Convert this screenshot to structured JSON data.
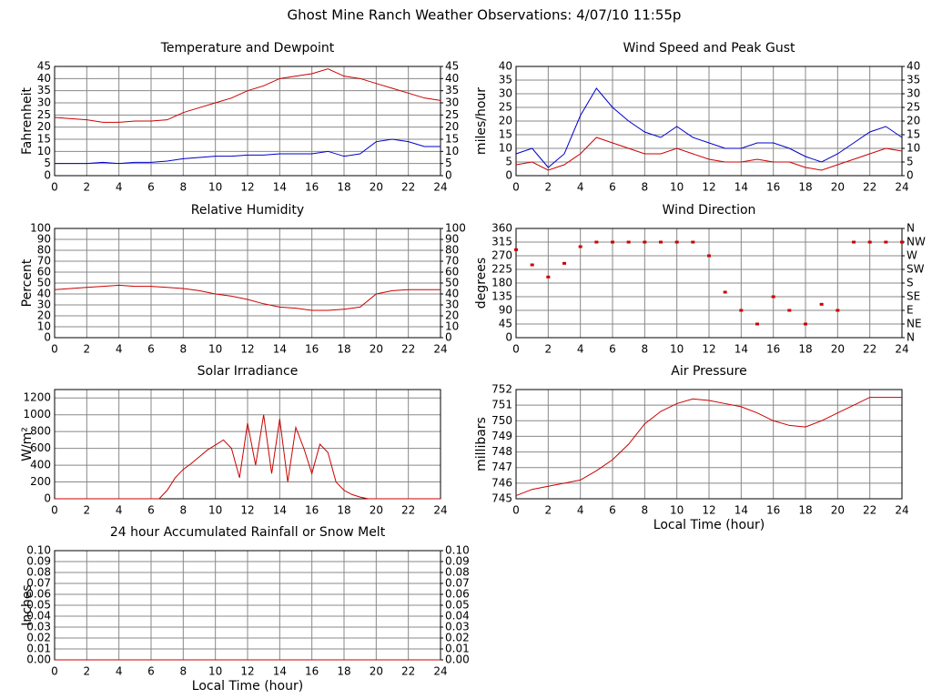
{
  "title": "Ghost Mine Ranch Weather Observations: 4/07/10 11:55p",
  "chart_data": [
    {
      "type": "line",
      "title": "Temperature and Dewpoint",
      "y_label": "Fahrenheit",
      "x": [
        0,
        1,
        2,
        3,
        4,
        5,
        6,
        7,
        8,
        9,
        10,
        11,
        12,
        13,
        14,
        15,
        16,
        17,
        18,
        19,
        20,
        21,
        22,
        23,
        24
      ],
      "series": [
        {
          "color": "#cc0000",
          "values": [
            24,
            23.5,
            23,
            22,
            22,
            22.5,
            22.5,
            23,
            26,
            28,
            30,
            32,
            35,
            37,
            40,
            41,
            42,
            44,
            41,
            40,
            38,
            36,
            34,
            32,
            31
          ]
        },
        {
          "color": "#0000cc",
          "values": [
            5,
            5,
            5,
            5.5,
            5,
            5.5,
            5.5,
            6,
            7,
            7.5,
            8,
            8,
            8.5,
            8.5,
            9,
            9,
            9,
            10,
            8,
            9,
            14,
            15,
            14,
            12,
            12
          ]
        }
      ],
      "xlim": [
        0,
        24
      ],
      "xticks": [
        0,
        2,
        4,
        6,
        8,
        10,
        12,
        14,
        16,
        18,
        20,
        22,
        24
      ],
      "ylim": [
        0,
        45
      ],
      "yticks": [
        0,
        5,
        10,
        15,
        20,
        25,
        30,
        35,
        40,
        45
      ],
      "y2lim": [
        0,
        45
      ],
      "y2ticks": [
        0,
        5,
        10,
        15,
        20,
        25,
        30,
        35,
        40,
        45
      ],
      "grid": true
    },
    {
      "type": "line",
      "title": "Wind Speed and Peak Gust",
      "y_label": "miles/hour",
      "x": [
        0,
        1,
        2,
        3,
        4,
        5,
        6,
        7,
        8,
        9,
        10,
        11,
        12,
        13,
        14,
        15,
        16,
        17,
        18,
        19,
        20,
        21,
        22,
        23,
        24
      ],
      "series": [
        {
          "color": "#0000cc",
          "values": [
            8,
            10,
            3,
            8,
            22,
            32,
            25,
            20,
            16,
            14,
            18,
            14,
            12,
            10,
            10,
            12,
            12,
            10,
            7,
            5,
            8,
            12,
            16,
            18,
            14
          ]
        },
        {
          "color": "#cc0000",
          "values": [
            4,
            5,
            2,
            4,
            8,
            14,
            12,
            10,
            8,
            8,
            10,
            8,
            6,
            5,
            5,
            6,
            5,
            5,
            3,
            2,
            4,
            6,
            8,
            10,
            9
          ]
        }
      ],
      "xlim": [
        0,
        24
      ],
      "xticks": [
        0,
        2,
        4,
        6,
        8,
        10,
        12,
        14,
        16,
        18,
        20,
        22,
        24
      ],
      "ylim": [
        0,
        40
      ],
      "yticks": [
        0,
        5,
        10,
        15,
        20,
        25,
        30,
        35,
        40
      ],
      "y2lim": [
        0,
        40
      ],
      "y2ticks": [
        0,
        5,
        10,
        15,
        20,
        25,
        30,
        35,
        40
      ],
      "grid": true
    },
    {
      "type": "line",
      "title": "Relative Humidity",
      "y_label": "Percent",
      "x": [
        0,
        1,
        2,
        3,
        4,
        5,
        6,
        7,
        8,
        9,
        10,
        11,
        12,
        13,
        14,
        15,
        16,
        17,
        18,
        19,
        20,
        21,
        22,
        23,
        24
      ],
      "series": [
        {
          "color": "#cc0000",
          "values": [
            44,
            45,
            46,
            47,
            48,
            47,
            47,
            46,
            45,
            43,
            40,
            38,
            35,
            31,
            28,
            27,
            25,
            25,
            26,
            28,
            40,
            43,
            44,
            44,
            44
          ]
        }
      ],
      "xlim": [
        0,
        24
      ],
      "xticks": [
        0,
        2,
        4,
        6,
        8,
        10,
        12,
        14,
        16,
        18,
        20,
        22,
        24
      ],
      "ylim": [
        0,
        100
      ],
      "yticks": [
        0,
        10,
        20,
        30,
        40,
        50,
        60,
        70,
        80,
        90,
        100
      ],
      "y2lim": [
        0,
        100
      ],
      "y2ticks": [
        0,
        10,
        20,
        30,
        40,
        50,
        60,
        70,
        80,
        90,
        100
      ],
      "grid": true
    },
    {
      "type": "scatter",
      "title": "Wind Direction",
      "y_label": "degrees",
      "x": [
        0,
        1,
        2,
        3,
        4,
        5,
        6,
        7,
        8,
        9,
        10,
        11,
        12,
        13,
        14,
        15,
        16,
        17,
        18,
        19,
        20,
        21,
        22,
        23,
        24
      ],
      "series": [
        {
          "color": "#cc0000",
          "values": [
            290,
            240,
            200,
            245,
            300,
            315,
            315,
            315,
            315,
            315,
            315,
            315,
            270,
            150,
            90,
            45,
            135,
            90,
            45,
            110,
            90,
            315,
            315,
            315,
            315
          ]
        }
      ],
      "xlim": [
        0,
        24
      ],
      "xticks": [
        0,
        2,
        4,
        6,
        8,
        10,
        12,
        14,
        16,
        18,
        20,
        22,
        24
      ],
      "ylim": [
        0,
        360
      ],
      "yticks": [
        0,
        45,
        90,
        135,
        180,
        225,
        270,
        315,
        360
      ],
      "y2lim": [
        0,
        360
      ],
      "y2ticks": [
        {
          "value": 0,
          "label": "N"
        },
        {
          "value": 45,
          "label": "NE"
        },
        {
          "value": 90,
          "label": "E"
        },
        {
          "value": 135,
          "label": "SE"
        },
        {
          "value": 180,
          "label": "S"
        },
        {
          "value": 225,
          "label": "SW"
        },
        {
          "value": 270,
          "label": "W"
        },
        {
          "value": 315,
          "label": "NW"
        },
        {
          "value": 360,
          "label": "N"
        }
      ],
      "grid": true
    },
    {
      "type": "line",
      "title": "Solar Irradiance",
      "y_label": "W/m²",
      "x": [
        0,
        6.5,
        7,
        7.5,
        8,
        8.5,
        9,
        9.5,
        10,
        10.5,
        11,
        11.5,
        12,
        12.5,
        13,
        13.5,
        14,
        14.5,
        15,
        15.5,
        16,
        16.5,
        17,
        17.5,
        18,
        18.5,
        19,
        19.5,
        24
      ],
      "series": [
        {
          "color": "#cc0000",
          "values": [
            0,
            0,
            100,
            250,
            350,
            420,
            500,
            580,
            640,
            700,
            600,
            250,
            900,
            400,
            1000,
            300,
            950,
            200,
            850,
            600,
            300,
            650,
            550,
            200,
            100,
            50,
            20,
            0,
            0
          ]
        }
      ],
      "xlim": [
        0,
        24
      ],
      "xticks": [
        0,
        2,
        4,
        6,
        8,
        10,
        12,
        14,
        16,
        18,
        20,
        22,
        24
      ],
      "ylim": [
        0,
        1300
      ],
      "yticks": [
        0,
        200,
        400,
        600,
        800,
        1000,
        1200
      ],
      "grid": true
    },
    {
      "type": "line",
      "title": "Air Pressure",
      "y_label": "millibars",
      "x_label": "Local Time (hour)",
      "x": [
        0,
        1,
        2,
        3,
        4,
        5,
        6,
        7,
        8,
        9,
        10,
        11,
        12,
        13,
        14,
        15,
        16,
        17,
        18,
        19,
        20,
        21,
        22,
        23,
        24
      ],
      "series": [
        {
          "color": "#cc0000",
          "values": [
            745.2,
            745.6,
            745.8,
            746,
            746.2,
            746.8,
            747.5,
            748.5,
            749.8,
            750.6,
            751.1,
            751.4,
            751.3,
            751.1,
            750.9,
            750.5,
            750,
            749.7,
            749.6,
            750,
            750.5,
            751,
            751.5,
            751.5,
            751.5
          ]
        }
      ],
      "xlim": [
        0,
        24
      ],
      "xticks": [
        0,
        2,
        4,
        6,
        8,
        10,
        12,
        14,
        16,
        18,
        20,
        22,
        24
      ],
      "ylim": [
        745,
        752
      ],
      "yticks": [
        745,
        746,
        747,
        748,
        749,
        750,
        751,
        752
      ],
      "grid": true
    },
    {
      "type": "line",
      "title": "24 hour Accumulated Rainfall or Snow Melt",
      "y_label": "Inches",
      "x_label": "Local Time (hour)",
      "x": [
        0,
        24
      ],
      "series": [
        {
          "color": "#cc0000",
          "values": [
            0,
            0
          ]
        }
      ],
      "xlim": [
        0,
        24
      ],
      "xticks": [
        0,
        2,
        4,
        6,
        8,
        10,
        12,
        14,
        16,
        18,
        20,
        22,
        24
      ],
      "ylim": [
        0,
        0.1
      ],
      "yticks": [
        {
          "value": 0,
          "label": "0.00"
        },
        {
          "value": 0.01,
          "label": "0.01"
        },
        {
          "value": 0.02,
          "label": "0.02"
        },
        {
          "value": 0.03,
          "label": "0.03"
        },
        {
          "value": 0.04,
          "label": "0.04"
        },
        {
          "value": 0.05,
          "label": "0.05"
        },
        {
          "value": 0.06,
          "label": "0.06"
        },
        {
          "value": 0.07,
          "label": "0.07"
        },
        {
          "value": 0.08,
          "label": "0.08"
        },
        {
          "value": 0.09,
          "label": "0.09"
        },
        {
          "value": 0.1,
          "label": "0.10"
        }
      ],
      "y2lim": [
        0,
        0.1
      ],
      "y2ticks": [
        {
          "value": 0,
          "label": "0.00"
        },
        {
          "value": 0.01,
          "label": "0.01"
        },
        {
          "value": 0.02,
          "label": "0.02"
        },
        {
          "value": 0.03,
          "label": "0.03"
        },
        {
          "value": 0.04,
          "label": "0.04"
        },
        {
          "value": 0.05,
          "label": "0.05"
        },
        {
          "value": 0.06,
          "label": "0.06"
        },
        {
          "value": 0.07,
          "label": "0.07"
        },
        {
          "value": 0.08,
          "label": "0.08"
        },
        {
          "value": 0.09,
          "label": "0.09"
        },
        {
          "value": 0.1,
          "label": "0.10"
        }
      ],
      "grid": true
    }
  ]
}
